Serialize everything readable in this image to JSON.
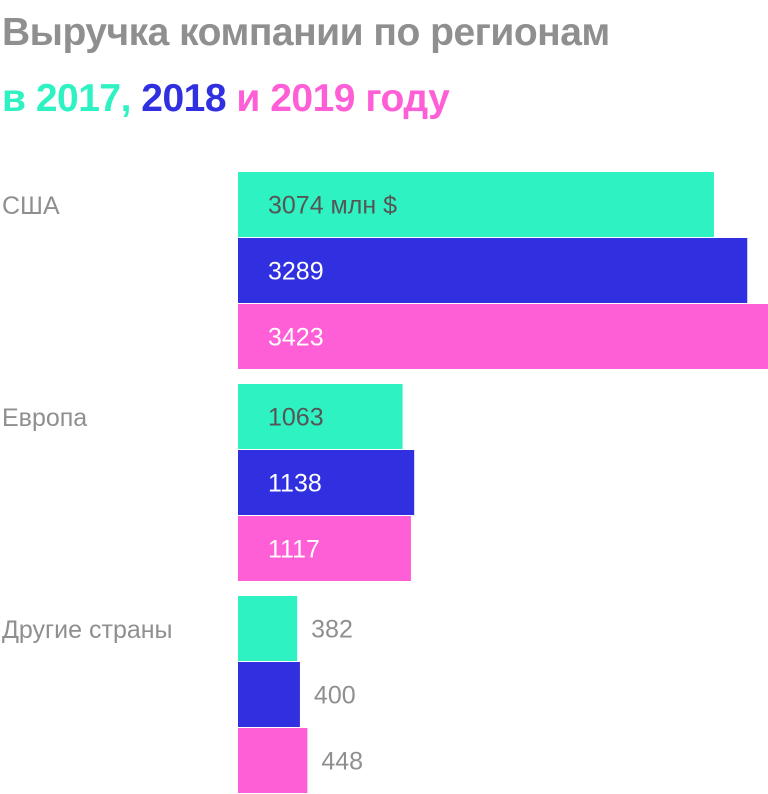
{
  "title": {
    "line1": "Выручка компании по регионам",
    "prefix": "в",
    "y2017": "2017,",
    "y2018": "2018",
    "conj": "и",
    "y2019": "2019",
    "suffix": "году"
  },
  "colors": {
    "y2017": "#2ff2c3",
    "y2018": "#3030e0",
    "y2019": "#ff5fd6",
    "text_gray": "#8f8f8f"
  },
  "chart_data": {
    "type": "bar",
    "orientation": "horizontal",
    "unit": "млн $",
    "categories": [
      "США",
      "Европа",
      "Другие страны"
    ],
    "series": [
      {
        "name": "2017",
        "values": [
          3074,
          1063,
          382
        ]
      },
      {
        "name": "2018",
        "values": [
          3289,
          1138,
          400
        ]
      },
      {
        "name": "2019",
        "values": [
          3423,
          1117,
          448
        ]
      }
    ],
    "value_labels": [
      [
        "3074 млн $",
        "3289",
        "3423"
      ],
      [
        "1063",
        "1138",
        "1117"
      ],
      [
        "382",
        "400",
        "448"
      ]
    ],
    "xlim": [
      0,
      3423
    ],
    "grid": false,
    "legend": "title"
  }
}
